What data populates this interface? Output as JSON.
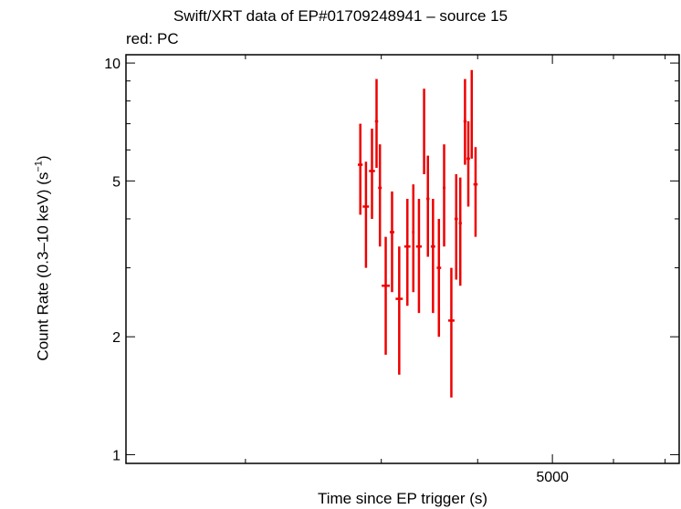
{
  "chart_data": {
    "type": "scatter",
    "title": "Swift/XRT data of EP#01709248941 – source 15",
    "subtitle": "red: PC",
    "xlabel": "Time since EP trigger (s)",
    "ylabel_main": "Count Rate (0.3–10 keV) (s",
    "ylabel_sup": "−1",
    "ylabel_end": ")",
    "x_scale": "log",
    "y_scale": "log",
    "xlim": [
      1400,
      7300
    ],
    "ylim": [
      0.95,
      10.5
    ],
    "x_ticks": [
      {
        "value": 5000,
        "label": "5000"
      }
    ],
    "x_minor_ticks": [
      2000,
      3000,
      4000,
      6000,
      7000
    ],
    "y_ticks": [
      {
        "value": 1,
        "label": "1"
      },
      {
        "value": 2,
        "label": "2"
      },
      {
        "value": 5,
        "label": "5"
      },
      {
        "value": 10,
        "label": "10"
      }
    ],
    "y_minor_ticks": [
      3,
      4,
      6,
      7,
      8,
      9
    ],
    "series": [
      {
        "color": "#ee0000",
        "points": [
          {
            "x": 2818,
            "y": 5.5,
            "xerr": [
              2797,
              2838
            ],
            "yerr": [
              4.1,
              7.0
            ]
          },
          {
            "x": 2866,
            "y": 4.3,
            "xerr": [
              2838,
              2892
            ],
            "yerr": [
              3.0,
              5.6
            ]
          },
          {
            "x": 2918,
            "y": 5.3,
            "xerr": [
              2892,
              2944
            ],
            "yerr": [
              4.0,
              6.8
            ]
          },
          {
            "x": 2958,
            "y": 7.1,
            "xerr": [
              2944,
              2972
            ],
            "yerr": [
              5.4,
              9.1
            ]
          },
          {
            "x": 2988,
            "y": 4.8,
            "xerr": [
              2972,
              3004
            ],
            "yerr": [
              3.4,
              6.2
            ]
          },
          {
            "x": 3040,
            "y": 2.7,
            "xerr": [
              3004,
              3077
            ],
            "yerr": [
              1.8,
              3.6
            ]
          },
          {
            "x": 3098,
            "y": 3.7,
            "xerr": [
              3077,
              3119
            ],
            "yerr": [
              2.6,
              4.7
            ]
          },
          {
            "x": 3165,
            "y": 2.5,
            "xerr": [
              3131,
              3199
            ],
            "yerr": [
              1.6,
              3.4
            ]
          },
          {
            "x": 3243,
            "y": 3.4,
            "xerr": [
              3213,
              3273
            ],
            "yerr": [
              2.4,
              4.5
            ]
          },
          {
            "x": 3301,
            "y": 3.7,
            "xerr": [
              3288,
              3313
            ],
            "yerr": [
              2.6,
              4.9
            ]
          },
          {
            "x": 3357,
            "y": 3.4,
            "xerr": [
              3328,
              3386
            ],
            "yerr": [
              2.3,
              4.5
            ]
          },
          {
            "x": 3409,
            "y": 6.8,
            "xerr": [
              3400,
              3417
            ],
            "yerr": [
              5.2,
              8.6
            ]
          },
          {
            "x": 3448,
            "y": 4.5,
            "xerr": [
              3432,
              3464
            ],
            "yerr": [
              3.2,
              5.8
            ]
          },
          {
            "x": 3501,
            "y": 3.4,
            "xerr": [
              3478,
              3524
            ],
            "yerr": [
              2.3,
              4.5
            ]
          },
          {
            "x": 3563,
            "y": 3.0,
            "xerr": [
              3540,
              3587
            ],
            "yerr": [
              2.0,
              4.0
            ]
          },
          {
            "x": 3619,
            "y": 4.8,
            "xerr": [
              3604,
              3634
            ],
            "yerr": [
              3.4,
              6.2
            ]
          },
          {
            "x": 3698,
            "y": 2.2,
            "xerr": [
              3663,
              3733
            ],
            "yerr": [
              1.4,
              3.0
            ]
          },
          {
            "x": 3752,
            "y": 4.0,
            "xerr": [
              3733,
              3771
            ],
            "yerr": [
              2.8,
              5.2
            ]
          },
          {
            "x": 3798,
            "y": 3.9,
            "xerr": [
              3781,
              3815
            ],
            "yerr": [
              2.7,
              5.1
            ]
          },
          {
            "x": 3852,
            "y": 7.1,
            "xerr": [
              3835,
              3870
            ],
            "yerr": [
              5.5,
              9.1
            ]
          },
          {
            "x": 3890,
            "y": 5.7,
            "xerr": [
              3870,
              3910
            ],
            "yerr": [
              4.3,
              7.1
            ]
          },
          {
            "x": 3930,
            "y": 7.6,
            "xerr": [
              3920,
              3940
            ],
            "yerr": [
              5.7,
              9.6
            ]
          },
          {
            "x": 3975,
            "y": 4.9,
            "xerr": [
              3950,
              4000
            ],
            "yerr": [
              3.6,
              6.1
            ]
          }
        ]
      }
    ]
  }
}
